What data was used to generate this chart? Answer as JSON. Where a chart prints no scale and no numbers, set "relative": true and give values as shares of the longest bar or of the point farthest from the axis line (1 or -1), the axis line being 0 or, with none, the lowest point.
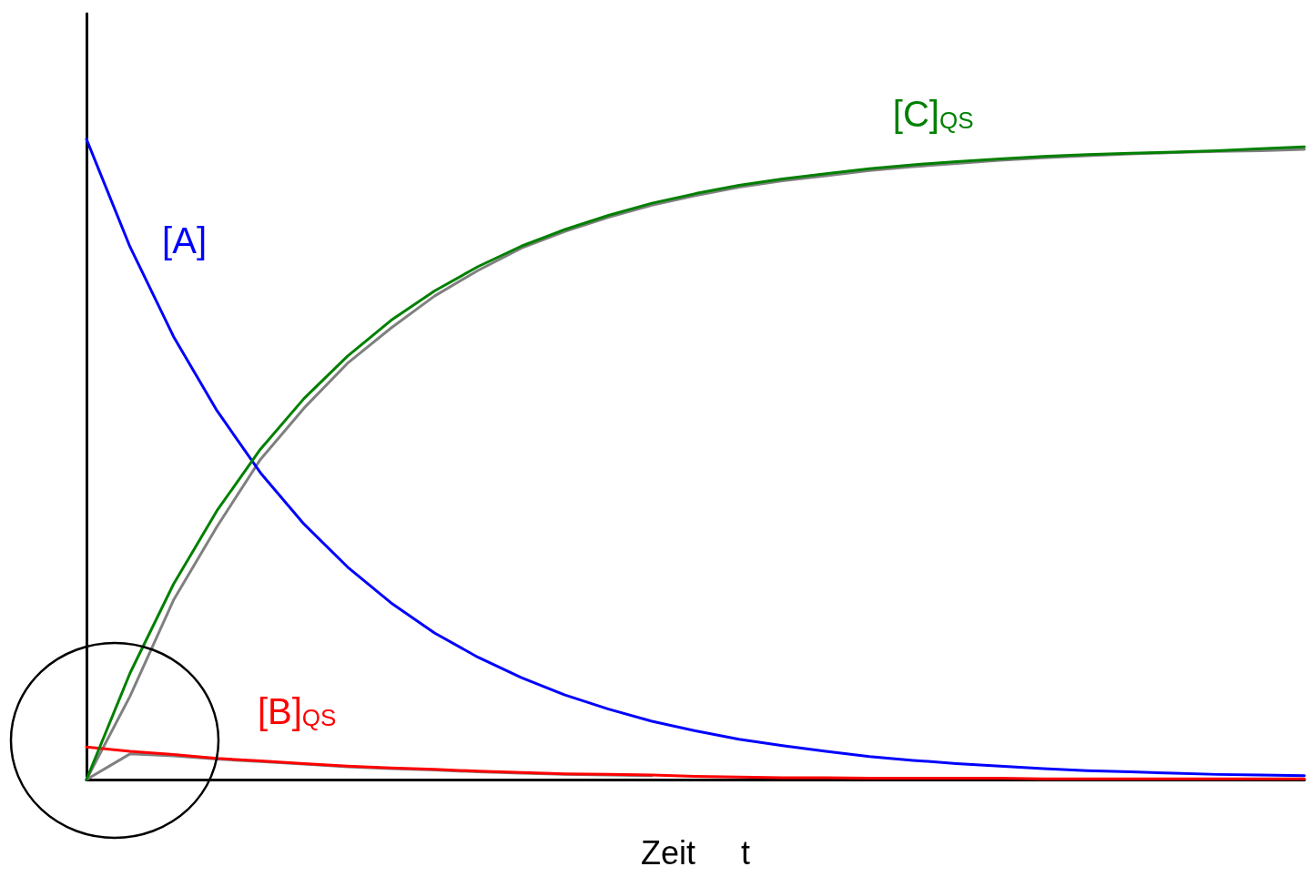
{
  "chart_data": {
    "type": "line",
    "relative": true,
    "xlabel": "Zeit     t",
    "marker": "none",
    "line_style": "solid",
    "categories": [
      null,
      null,
      null,
      null,
      null,
      null,
      null,
      null,
      null,
      null,
      null,
      null,
      null,
      null,
      null,
      null,
      null,
      null,
      null,
      null,
      null,
      null,
      null,
      null,
      null,
      null,
      null,
      null,
      null
    ],
    "series": [
      {
        "color": "#808080",
        "values": [
          0,
          0.13,
          0.28,
          0.395,
          0.5,
          0.58,
          0.65,
          0.705,
          0.755,
          0.795,
          0.83,
          0.856,
          0.878,
          0.897,
          0.912,
          0.925,
          0.935,
          0.943,
          0.951,
          0.957,
          0.962,
          0.967,
          0.971,
          0.974,
          0.977,
          0.979,
          0.981,
          0.982,
          0.984
        ]
      },
      {
        "color": "#808080",
        "values": [
          0,
          0.04,
          0.037,
          0.032,
          0.028,
          0.024,
          0.02,
          0.017,
          0.015,
          0.012,
          0.01,
          0.008,
          0.007,
          0.006,
          null,
          null,
          null,
          null,
          null,
          null,
          null,
          null,
          null,
          null,
          null,
          null,
          null,
          null,
          null
        ]
      },
      {
        "name": "[A]",
        "color": "#0000ff",
        "values": [
          1,
          0.832,
          0.692,
          0.576,
          0.479,
          0.399,
          0.332,
          0.276,
          0.229,
          0.191,
          0.159,
          0.132,
          0.11,
          0.091,
          0.076,
          0.063,
          0.053,
          0.044,
          0.036,
          0.03,
          0.025,
          0.021,
          0.017,
          0.014,
          0.012,
          0.01,
          0.008,
          0.007,
          0.006
        ]
      },
      {
        "name": "[B]$_{QS}$",
        "color": "#ff0000",
        "values": [
          0.051,
          0.044,
          0.039,
          0.033,
          0.029,
          0.025,
          0.021,
          0.018,
          0.016,
          0.013,
          0.011,
          0.009,
          0.008,
          0.007,
          0.005,
          0.004,
          0.003,
          0.003,
          0.002,
          0.002,
          0.002,
          0.002,
          0.001,
          0.001,
          0.001,
          0.001,
          0.001,
          0.001,
          0.001
        ]
      },
      {
        "name": "[C]$_{QS}$",
        "color": "#008000",
        "values": [
          0,
          0.166,
          0.305,
          0.42,
          0.516,
          0.595,
          0.661,
          0.717,
          0.763,
          0.801,
          0.833,
          0.859,
          0.881,
          0.9,
          0.915,
          0.928,
          0.938,
          0.946,
          0.954,
          0.96,
          0.965,
          0.969,
          0.973,
          0.976,
          0.978,
          0.98,
          0.982,
          0.985,
          0.988
        ]
      }
    ]
  }
}
